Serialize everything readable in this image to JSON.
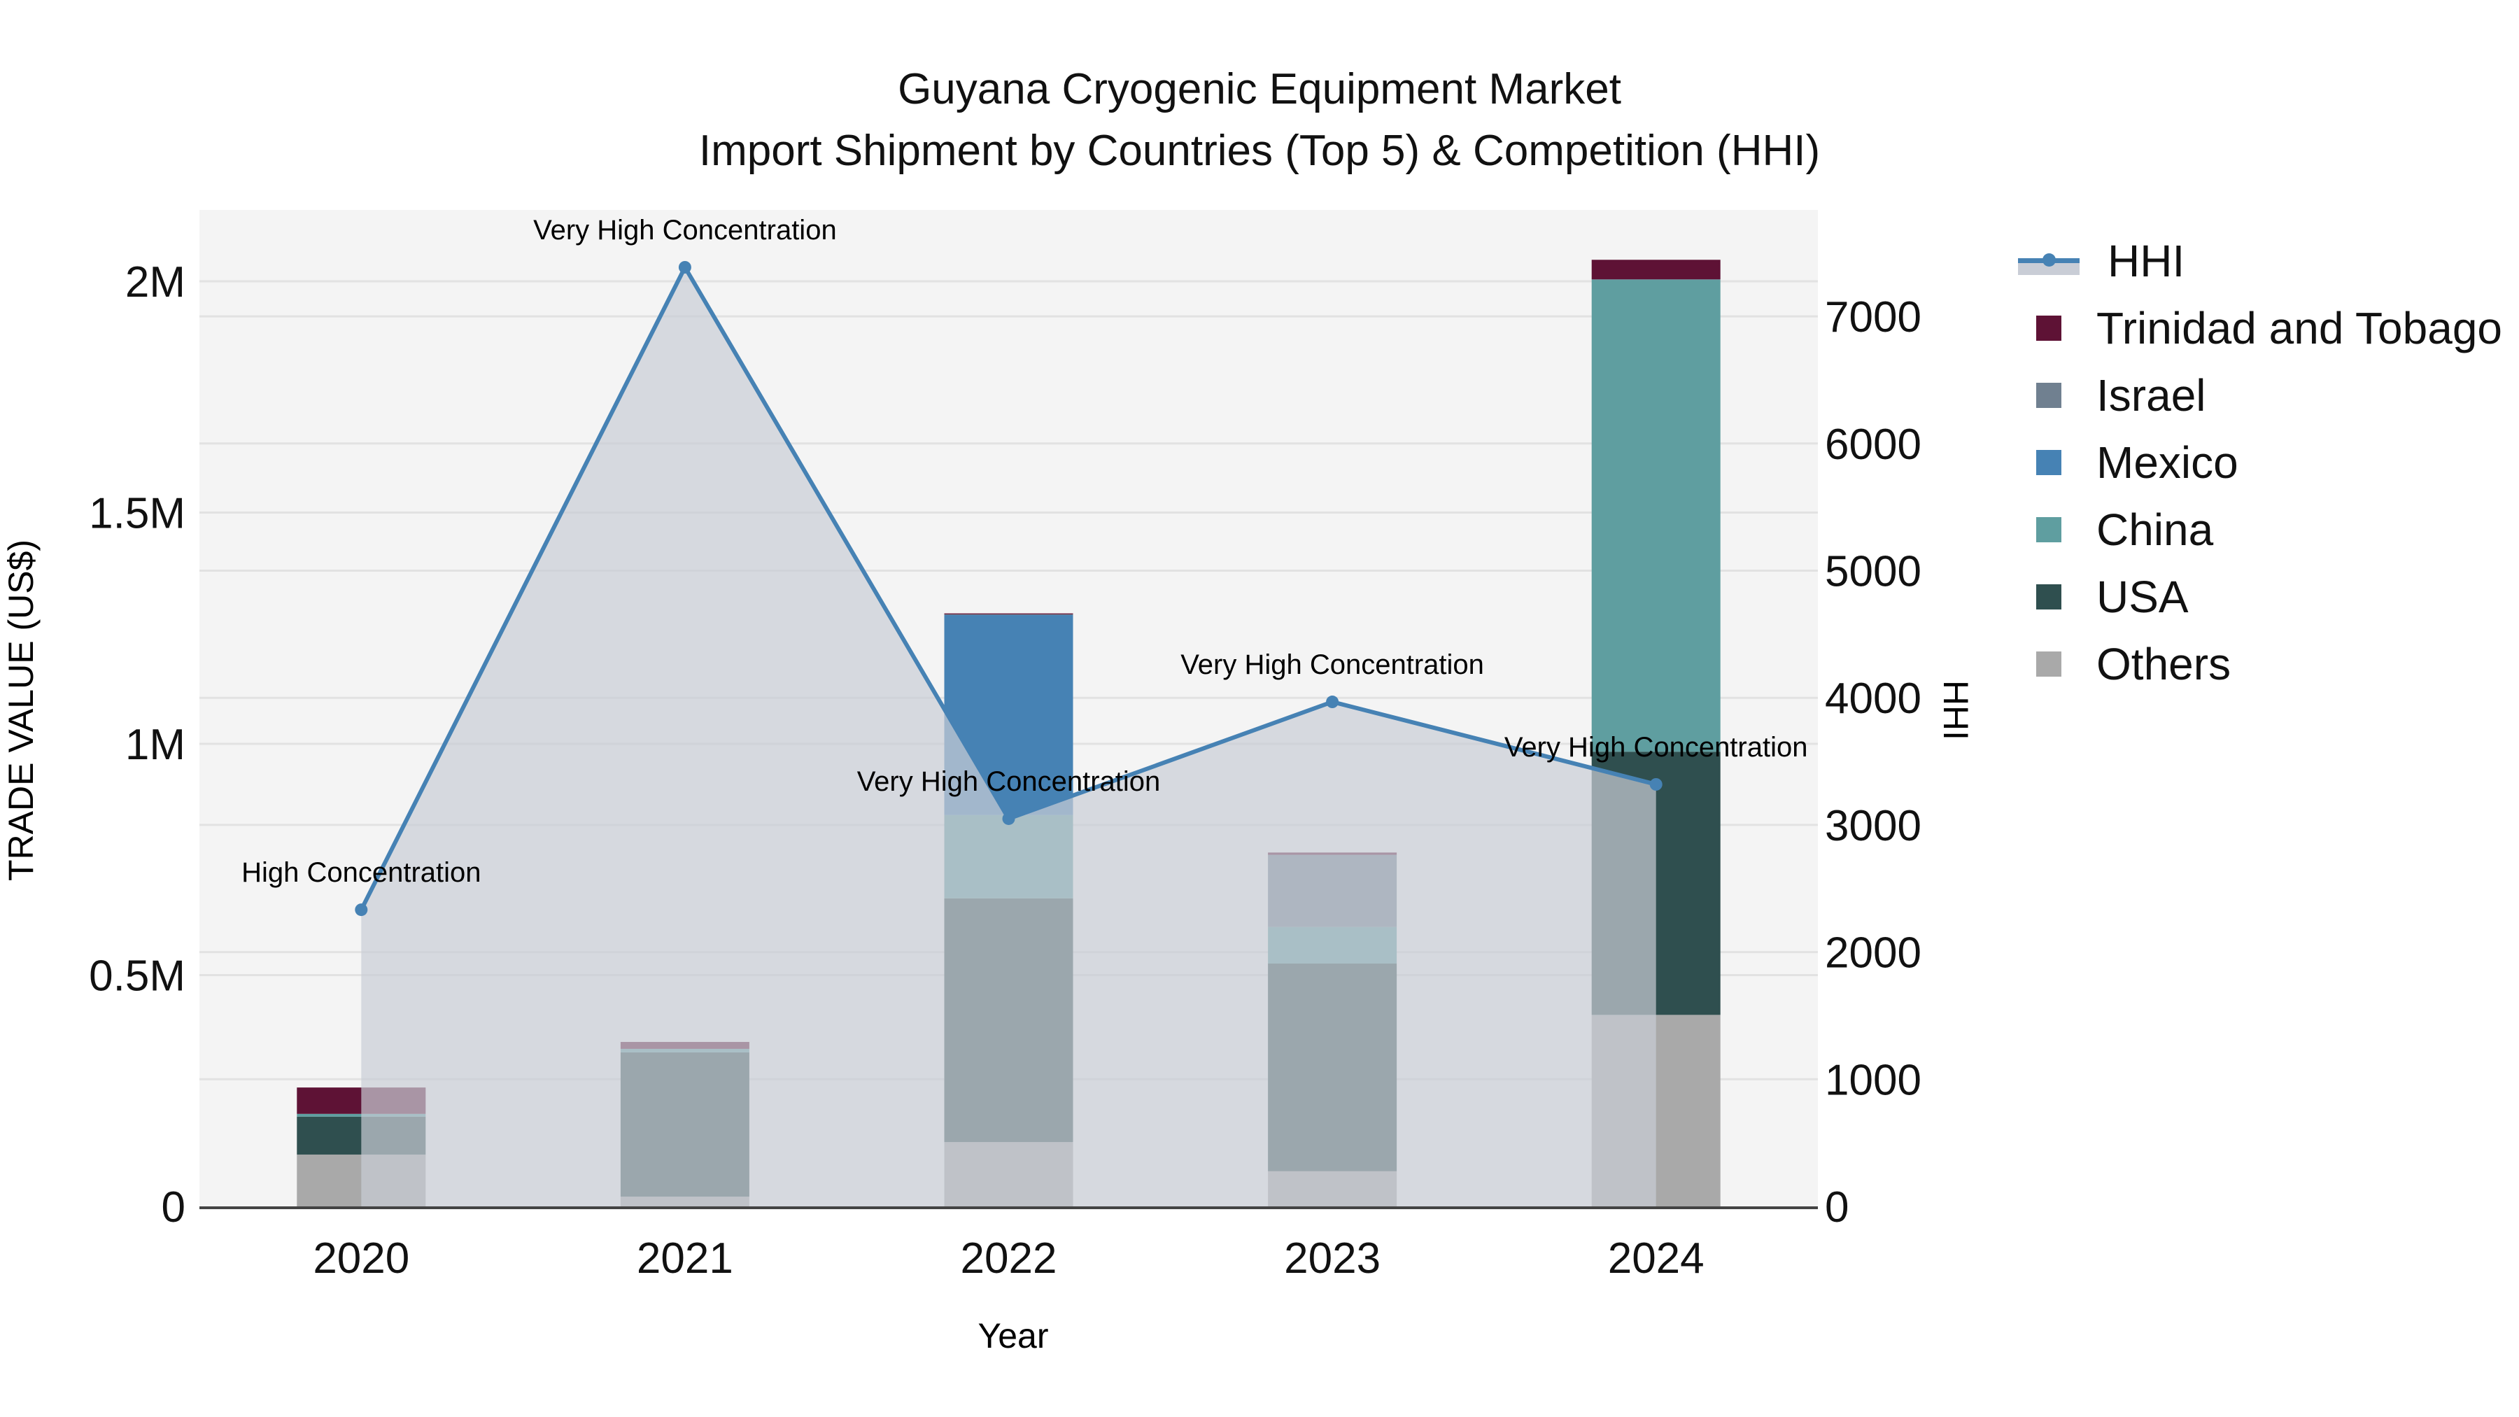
{
  "header": {
    "title_line1": "Guyana Cryogenic Equipment Market",
    "title_line2": "Import Shipment by Countries (Top 5) & Competition (HHI)"
  },
  "axes": {
    "x_title": "Year",
    "y_title": "TRADE VALUE (US$)",
    "y2_title": "HHI"
  },
  "colors": {
    "plot_bg": "#f4f4f4",
    "grid": "#e2e2e2",
    "hhi_line": "#4682b4",
    "hhi_fill": "#c9cdd6",
    "Trinidad and Tobago": "#5e1235",
    "Israel": "#708090",
    "Mexico": "#4682b4",
    "China": "#5f9ea0",
    "USA": "#2f4f4f",
    "Others": "#a9a9a9"
  },
  "legend": {
    "items": [
      {
        "label": "HHI",
        "type": "line"
      },
      {
        "label": "Trinidad and Tobago",
        "type": "bar"
      },
      {
        "label": "Israel",
        "type": "bar"
      },
      {
        "label": "Mexico",
        "type": "bar"
      },
      {
        "label": "China",
        "type": "bar"
      },
      {
        "label": "USA",
        "type": "bar"
      },
      {
        "label": "Others",
        "type": "bar"
      }
    ]
  },
  "chart_data": {
    "type": "bar",
    "stacked": true,
    "title": "Guyana Cryogenic Equipment Market — Import Shipment by Countries (Top 5) & Competition (HHI)",
    "xlabel": "Year",
    "ylabel": "TRADE VALUE (US$)",
    "y2label": "HHI",
    "categories": [
      "2020",
      "2021",
      "2022",
      "2023",
      "2024"
    ],
    "ylim": [
      0,
      2150000
    ],
    "y_ticks": [
      0,
      500000,
      1000000,
      1500000,
      2000000
    ],
    "y_tick_labels": [
      "0",
      "0.5M",
      "1M",
      "1.5M",
      "2M"
    ],
    "y2lim": [
      0,
      7830
    ],
    "y2_ticks": [
      0,
      1000,
      2000,
      3000,
      4000,
      5000,
      6000,
      7000
    ],
    "y2_tick_labels": [
      "0",
      "1000",
      "2000",
      "3000",
      "4000",
      "5000",
      "6000",
      "7000"
    ],
    "grid": true,
    "legend_position": "right",
    "series": [
      {
        "name": "Others",
        "values": [
          112000,
          21000,
          139000,
          76000,
          414000
        ]
      },
      {
        "name": "USA",
        "values": [
          82000,
          312000,
          527000,
          449000,
          569000
        ]
      },
      {
        "name": "China",
        "values": [
          6000,
          7500,
          180000,
          79000,
          1020000
        ]
      },
      {
        "name": "Mexico",
        "values": [
          0,
          0,
          433000,
          0,
          0
        ]
      },
      {
        "name": "Israel",
        "values": [
          0,
          0,
          1000,
          156000,
          1500
        ]
      },
      {
        "name": "Trinidad and Tobago",
        "values": [
          57000,
          15000,
          2000,
          5000,
          42000
        ]
      }
    ],
    "line_series": {
      "name": "HHI",
      "axis": "y2",
      "type": "line+area",
      "values": [
        2333,
        7386,
        3049,
        3968,
        3319
      ]
    },
    "annotations": [
      {
        "x": "2020",
        "text": "High Concentration"
      },
      {
        "x": "2021",
        "text": "Very High Concentration"
      },
      {
        "x": "2022",
        "text": "Very High Concentration"
      },
      {
        "x": "2023",
        "text": "Very High Concentration"
      },
      {
        "x": "2024",
        "text": "Very High Concentration"
      }
    ]
  }
}
